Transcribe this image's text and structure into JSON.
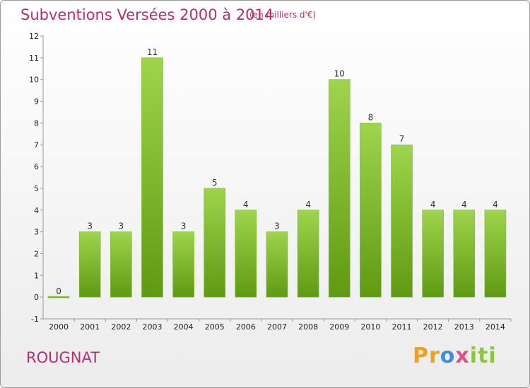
{
  "header": {
    "title": "Subventions Versées 2000 à 2014",
    "subtitle": "(en milliers d'€)"
  },
  "footer": {
    "place": "ROUGNAT",
    "logo": [
      "Pr",
      "o",
      "x",
      "iti"
    ]
  },
  "chart_data": {
    "type": "bar",
    "title": "Subventions Versées 2000 à 2014",
    "subtitle": "(en milliers d'€)",
    "xlabel": "",
    "ylabel": "",
    "categories": [
      "2000",
      "2001",
      "2002",
      "2003",
      "2004",
      "2005",
      "2006",
      "2007",
      "2008",
      "2009",
      "2010",
      "2011",
      "2012",
      "2013",
      "2014"
    ],
    "values": [
      0,
      3,
      3,
      11,
      3,
      5,
      4,
      3,
      4,
      10,
      8,
      7,
      4,
      4,
      4
    ],
    "ylim": [
      -1,
      12
    ],
    "yticks": [
      "-1",
      "0",
      "1",
      "2",
      "3",
      "4",
      "5",
      "6",
      "7",
      "8",
      "9",
      "10",
      "11",
      "12"
    ],
    "grid": false,
    "legend": "none",
    "colors": {
      "bar_top": "#9fd44d",
      "bar_bottom": "#5f9a12",
      "accent": "#b52e72"
    }
  }
}
